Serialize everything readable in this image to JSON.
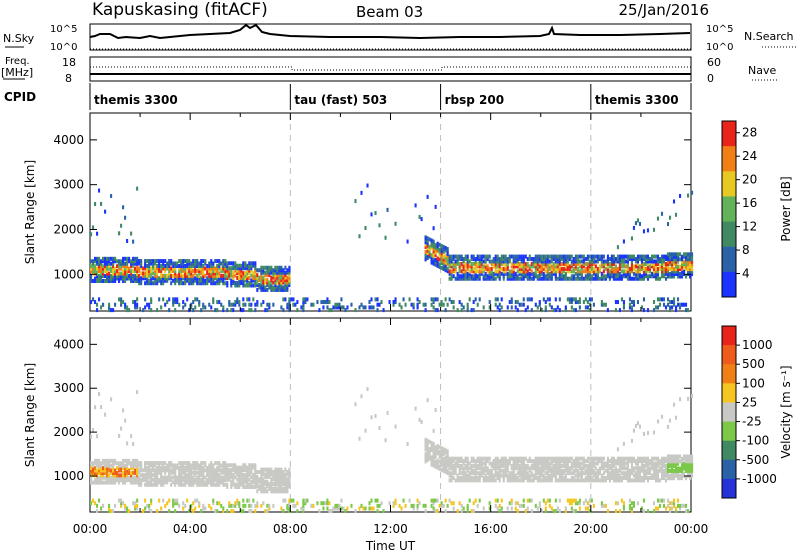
{
  "header": {
    "station": "Kapuskasing (fitACF)",
    "beam": "Beam 03",
    "date": "25/Jan/2016"
  },
  "top_panels": {
    "nsky_label": "N.Sky",
    "nsky_ticks": [
      "10^5",
      "10^0"
    ],
    "nsearch_label": "N.Search",
    "freq_label": "Freq.",
    "freq_unit": "[MHz]",
    "freq_ticks": [
      "18",
      "8"
    ],
    "nave_label": "Nave",
    "nave_ticks": [
      "60",
      "0"
    ],
    "cpid_label": "CPID"
  },
  "cpid_segments": [
    {
      "label": "themis 3300",
      "start_hour": 0
    },
    {
      "label": "tau (fast) 503",
      "start_hour": 8
    },
    {
      "label": "rbsp 200",
      "start_hour": 14
    },
    {
      "label": "themis 3300",
      "start_hour": 20
    }
  ],
  "chart_data": [
    {
      "type": "heatmap",
      "title": "Power",
      "xlabel": "",
      "ylabel": "Slant Range [km]",
      "xlim": [
        0,
        24
      ],
      "ylim": [
        180,
        4600
      ],
      "y_ticks": [
        "1000",
        "2000",
        "3000",
        "4000"
      ],
      "colorbar_label": "Power [dB]",
      "colorbar_ticks": [
        "4",
        "8",
        "12",
        "16",
        "20",
        "24",
        "28"
      ],
      "colorbar_range": [
        0,
        30
      ],
      "colors": [
        "#1a33ff",
        "#2a62a8",
        "#3f8a63",
        "#63b25a",
        "#e8c822",
        "#f07f16",
        "#e8241b"
      ]
    },
    {
      "type": "heatmap",
      "title": "Velocity",
      "xlabel": "Time UT",
      "ylabel": "Slant Range [km]",
      "xlim": [
        0,
        24
      ],
      "ylim": [
        180,
        4600
      ],
      "x_ticks": [
        "00:00",
        "04:00",
        "08:00",
        "12:00",
        "16:00",
        "20:00",
        "00:00"
      ],
      "y_ticks": [
        "1000",
        "2000",
        "3000",
        "4000"
      ],
      "colorbar_label": "Velocity [m s⁻¹]",
      "colorbar_ticks": [
        "1000",
        "500",
        "100",
        "25",
        "-25",
        "-100",
        "-500",
        "-1000"
      ],
      "colors": [
        "#2533d8",
        "#2a62a8",
        "#3f8a63",
        "#7cc94a",
        "#c8c8c4",
        "#f5c622",
        "#f07f16",
        "#ee5b1a",
        "#e8241b"
      ]
    }
  ]
}
